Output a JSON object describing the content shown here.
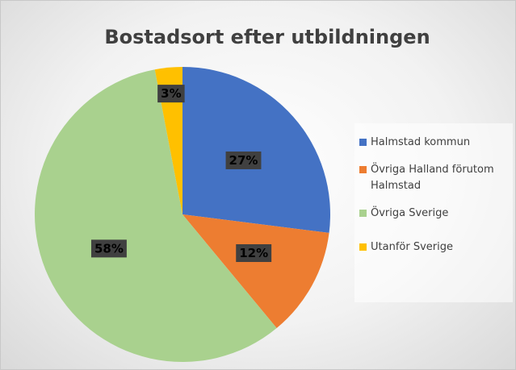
{
  "chart_data": {
    "type": "pie",
    "title": "Bostadsort efter utbildningen",
    "categories": [
      "Halmstad kommun",
      "Övriga Halland förutom Halmstad",
      "Övriga Sverige",
      "Utanför Sverige"
    ],
    "values": [
      27,
      12,
      58,
      3
    ],
    "value_labels": [
      "27%",
      "12%",
      "58%",
      "3%"
    ],
    "colors": [
      "#4472c4",
      "#ed7d31",
      "#a9d18e",
      "#ffc000"
    ],
    "legend": "right"
  }
}
